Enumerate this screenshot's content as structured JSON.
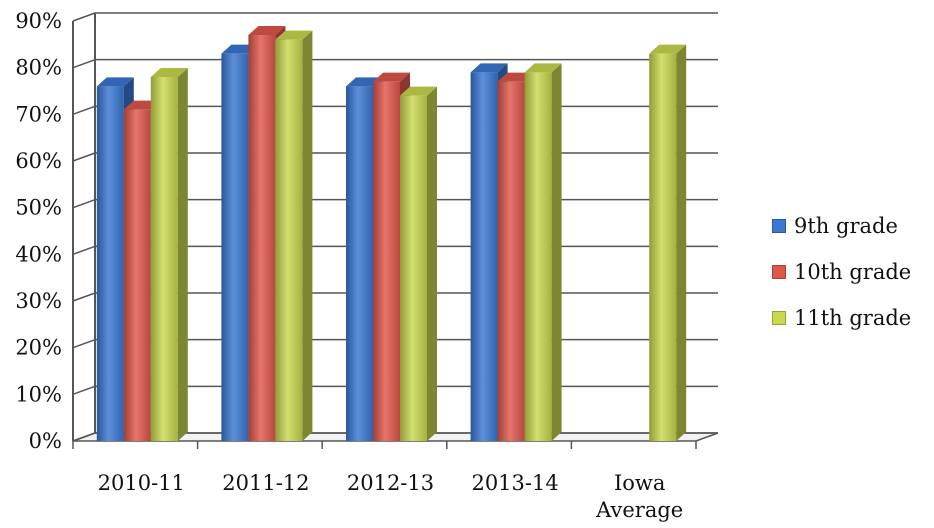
{
  "chart_data": {
    "type": "bar",
    "title": "",
    "xlabel": "",
    "ylabel": "",
    "categories": [
      "2010-11",
      "2011-12",
      "2012-13",
      "2013-14",
      "Iowa Average"
    ],
    "category_lines": [
      [
        "2010-11"
      ],
      [
        "2011-12"
      ],
      [
        "2012-13"
      ],
      [
        "2013-14"
      ],
      [
        "Iowa",
        "Average"
      ]
    ],
    "y_ticks": [
      "0%",
      "10%",
      "20%",
      "30%",
      "40%",
      "50%",
      "60%",
      "70%",
      "80%",
      "90%"
    ],
    "ylim": [
      0,
      90
    ],
    "grid": true,
    "legend_position": "right",
    "series": [
      {
        "name": "9th grade",
        "color": "#3a78d4",
        "values": [
          76,
          83,
          76,
          79,
          null
        ]
      },
      {
        "name": "10th grade",
        "color": "#e0574a",
        "values": [
          71,
          87,
          77,
          77,
          null
        ]
      },
      {
        "name": "11th grade",
        "color": "#c9d84e",
        "values": [
          78,
          86,
          74,
          79,
          83
        ]
      }
    ]
  }
}
